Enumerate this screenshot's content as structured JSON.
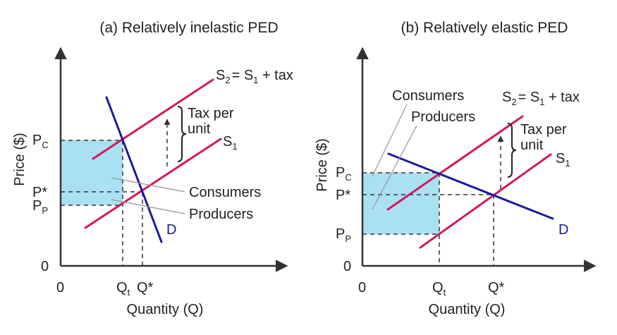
{
  "panels": [
    {
      "title": "(a) Relatively inelastic PED",
      "y_axis_label": "Price ($)",
      "x_axis_label": "Quantity (Q)",
      "origin_x": "0",
      "origin_y": "0",
      "y_ticks": {
        "pc_main": "P",
        "pc_sub": "C",
        "pstar": "P*",
        "pp_main": "P",
        "pp_sub": "P"
      },
      "x_ticks": {
        "qt_main": "Q",
        "qt_sub": "t",
        "qstar": "Q*"
      },
      "s2": {
        "main": "S",
        "sub": "2",
        "rest_eq": "= S",
        "rest_sub": "1",
        "rest_end": " + tax"
      },
      "s1": {
        "main": "S",
        "sub": "1"
      },
      "demand": "D",
      "tax_line1": "Tax per",
      "tax_line2": "unit",
      "consumers": "Consumers",
      "producers": "Producers"
    },
    {
      "title": "(b) Relatively elastic PED",
      "y_axis_label": "Price ($)",
      "x_axis_label": "Quantity (Q)",
      "origin_x": "0",
      "origin_y": "0",
      "y_ticks": {
        "pc_main": "P",
        "pc_sub": "C",
        "pstar": "P*",
        "pp_main": "P",
        "pp_sub": "P"
      },
      "x_ticks": {
        "qt_main": "Q",
        "qt_sub": "t",
        "qstar": "Q*"
      },
      "s2": {
        "main": "S",
        "sub": "2",
        "rest_eq": "= S",
        "rest_sub": "1",
        "rest_end": " + tax"
      },
      "s1": {
        "main": "S",
        "sub": "1"
      },
      "demand": "D",
      "tax_line1": "Tax per",
      "tax_line2": "unit",
      "consumers": "Consumers",
      "producers": "Producers"
    }
  ],
  "colors": {
    "supply": "#d6165f",
    "demand": "#1b1a9a",
    "tax_revenue_fill": "#a9e1f2",
    "axis": "#333333"
  }
}
